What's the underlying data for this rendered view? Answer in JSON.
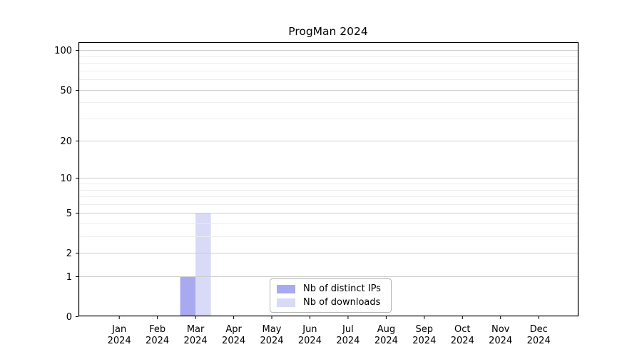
{
  "chart_data": {
    "type": "bar",
    "title": "ProgMan 2024",
    "categories": [
      "Jan",
      "Feb",
      "Mar",
      "Apr",
      "May",
      "Jun",
      "Jul",
      "Aug",
      "Sep",
      "Oct",
      "Nov",
      "Dec"
    ],
    "category_year": "2024",
    "series": [
      {
        "name": "Nb of distinct IPs",
        "color": "#a9a9f0",
        "values": [
          0,
          0,
          1,
          0,
          0,
          0,
          0,
          0,
          0,
          0,
          0,
          0
        ]
      },
      {
        "name": "Nb of downloads",
        "color": "#d9d9f8",
        "values": [
          0,
          0,
          5,
          0,
          0,
          0,
          0,
          0,
          0,
          0,
          0,
          0
        ]
      }
    ],
    "xlabel": "",
    "ylabel": "",
    "yscale": "log1p",
    "ylim": [
      0,
      114
    ],
    "y_ticks": [
      0,
      1,
      2,
      5,
      10,
      20,
      50,
      100
    ],
    "y_minor_ticks": [
      3,
      4,
      6,
      7,
      8,
      9,
      30,
      40,
      60,
      70,
      80,
      90
    ],
    "grid": "on",
    "legend_position": "lower center"
  },
  "colors": {
    "background": "#ffffff",
    "axis": "#000000",
    "text": "#000000",
    "grid_major": "#cccccc",
    "grid_minor": "#ededed",
    "legend_border": "#b4b4b4"
  }
}
